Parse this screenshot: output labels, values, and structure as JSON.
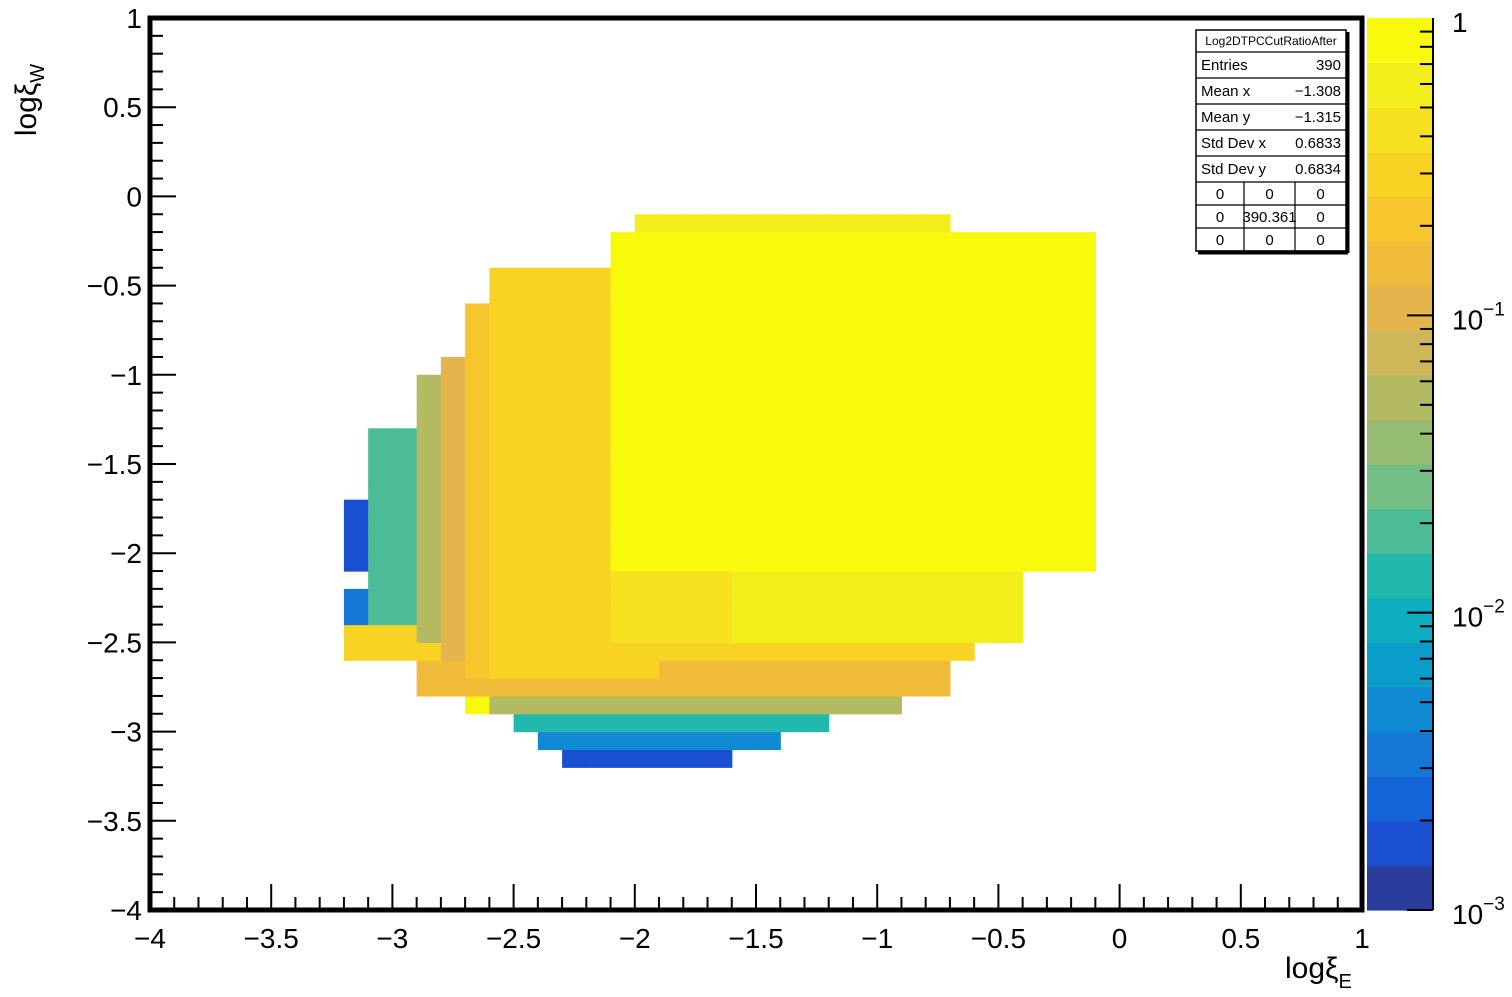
{
  "chart_data": {
    "type": "heatmap",
    "title": "",
    "xlabel": {
      "main": "logξ",
      "sub": "E"
    },
    "ylabel": {
      "main": "logξ",
      "sub": "W"
    },
    "xlim": [
      -4,
      1
    ],
    "ylim": [
      -4,
      1
    ],
    "x_ticks": [
      {
        "value": -4,
        "label": "−4"
      },
      {
        "value": -3.5,
        "label": "−3.5"
      },
      {
        "value": -3,
        "label": "−3"
      },
      {
        "value": -2.5,
        "label": "−2.5"
      },
      {
        "value": -2,
        "label": "−2"
      },
      {
        "value": -1.5,
        "label": "−1.5"
      },
      {
        "value": -1,
        "label": "−1"
      },
      {
        "value": -0.5,
        "label": "−0.5"
      },
      {
        "value": 0,
        "label": "0"
      },
      {
        "value": 0.5,
        "label": "0.5"
      },
      {
        "value": 1,
        "label": "1"
      }
    ],
    "y_ticks": [
      {
        "value": 1,
        "label": "1"
      },
      {
        "value": 0.5,
        "label": "0.5"
      },
      {
        "value": 0,
        "label": "0"
      },
      {
        "value": -0.5,
        "label": "−0.5"
      },
      {
        "value": -1,
        "label": "−1"
      },
      {
        "value": -1.5,
        "label": "−1.5"
      },
      {
        "value": -2,
        "label": "−2"
      },
      {
        "value": -2.5,
        "label": "−2.5"
      },
      {
        "value": -3,
        "label": "−3"
      },
      {
        "value": -3.5,
        "label": "−3.5"
      },
      {
        "value": -4,
        "label": "−4"
      }
    ],
    "bins": {
      "nx": 50,
      "ny": 50,
      "xmin": -4,
      "xmax": 1,
      "ymin": -4,
      "ymax": 1
    },
    "z_scale": "log",
    "zlim": [
      0.001,
      1
    ],
    "colorbar_labels": [
      {
        "value": 1,
        "mantissa": "1",
        "exp": ""
      },
      {
        "value": 0.1,
        "mantissa": "10",
        "exp": "−1"
      },
      {
        "value": 0.01,
        "mantissa": "10",
        "exp": "−2"
      },
      {
        "value": 0.001,
        "mantissa": "10",
        "exp": "−3"
      }
    ],
    "colorbar_bands": [
      "#2b3d9c",
      "#1b4fd1",
      "#1563d8",
      "#1477d6",
      "#0f8ad2",
      "#0b9dc9",
      "#0fadc0",
      "#23b8ad",
      "#4bbb98",
      "#72be85",
      "#95bd71",
      "#b3ba62",
      "#cfb659",
      "#e3b54c",
      "#f1bb3a",
      "#f7c62d",
      "#f9d324",
      "#f6e01f",
      "#f4ed1c",
      "#f9f90d"
    ],
    "regions": [
      {
        "x": [
          -2.3,
          -1.6
        ],
        "y": [
          -3.2,
          -3.1
        ],
        "z": 0.0015
      },
      {
        "x": [
          -2.4,
          -1.4
        ],
        "y": [
          -3.1,
          -3.0
        ],
        "z": 0.004
      },
      {
        "x": [
          -2.5,
          -1.2
        ],
        "y": [
          -3.0,
          -2.9
        ],
        "z": 0.015
      },
      {
        "x": [
          -2.7,
          -0.9
        ],
        "y": [
          -2.9,
          -2.8
        ],
        "z": 0.06
      },
      {
        "x": [
          -2.9,
          -0.7
        ],
        "y": [
          -2.8,
          -2.6
        ],
        "z": 0.15
      },
      {
        "x": [
          -3.2,
          -0.6
        ],
        "y": [
          -2.6,
          -2.3
        ],
        "z": 0.3
      },
      {
        "x": [
          -3.2,
          -3.1
        ],
        "y": [
          -1.85,
          -1.65
        ],
        "z": 0.0015
      },
      {
        "x": [
          -3.2,
          -3.1
        ],
        "y": [
          -2.05,
          -1.9
        ],
        "z": 0.0015
      },
      {
        "x": [
          -3.2,
          -3.1
        ],
        "y": [
          -2.35,
          -2.15
        ],
        "z": 0.003
      },
      {
        "x": [
          -3.1,
          -3.0
        ],
        "y": [
          -2.3,
          -1.3
        ],
        "z": 0.005
      },
      {
        "x": [
          -3.1,
          -2.9
        ],
        "y": [
          -2.4,
          -1.3
        ],
        "z": 0.02
      },
      {
        "x": [
          -2.9,
          -2.8
        ],
        "y": [
          -2.5,
          -1.0
        ],
        "z": 0.05
      },
      {
        "x": [
          -2.8,
          -2.6
        ],
        "y": [
          -2.6,
          -0.9
        ],
        "z": 0.12
      },
      {
        "x": [
          -2.7,
          -2.3
        ],
        "y": [
          -2.7,
          -0.6
        ],
        "z": 0.25
      },
      {
        "x": [
          -2.6,
          -1.9
        ],
        "y": [
          -2.7,
          -0.4
        ],
        "z": 0.35
      },
      {
        "x": [
          -2.1,
          -1.6
        ],
        "y": [
          -2.5,
          -0.3
        ],
        "z": 0.5
      },
      {
        "x": [
          -1.6,
          -0.4
        ],
        "y": [
          -2.45,
          -2.1
        ],
        "z": 0.55
      },
      {
        "x": [
          -2.1,
          -0.1
        ],
        "y": [
          -2.1,
          -0.2
        ],
        "z": 0.8
      },
      {
        "x": [
          -1.6,
          -0.2
        ],
        "y": [
          -0.35,
          -0.2
        ],
        "z": 0.85
      },
      {
        "x": [
          -2.0,
          -0.7
        ],
        "y": [
          -0.2,
          -0.1
        ],
        "z": 0.7
      },
      {
        "x": [
          -2.7,
          -2.6
        ],
        "y": [
          -2.85,
          -2.75
        ],
        "z": 1.0
      }
    ],
    "stats_box": {
      "title": "Log2DTPCCutRatioAfter",
      "rows": [
        {
          "label": "Entries",
          "value": "390"
        },
        {
          "label": "Mean x",
          "value": "−1.308"
        },
        {
          "label": "Mean y",
          "value": "−1.315"
        },
        {
          "label": "Std Dev x",
          "value": "0.6833"
        },
        {
          "label": "Std Dev y",
          "value": "0.6834"
        }
      ],
      "grid": [
        [
          "0",
          "0",
          "0"
        ],
        [
          "0",
          "390.361",
          "0"
        ],
        [
          "0",
          "0",
          "0"
        ]
      ]
    }
  }
}
